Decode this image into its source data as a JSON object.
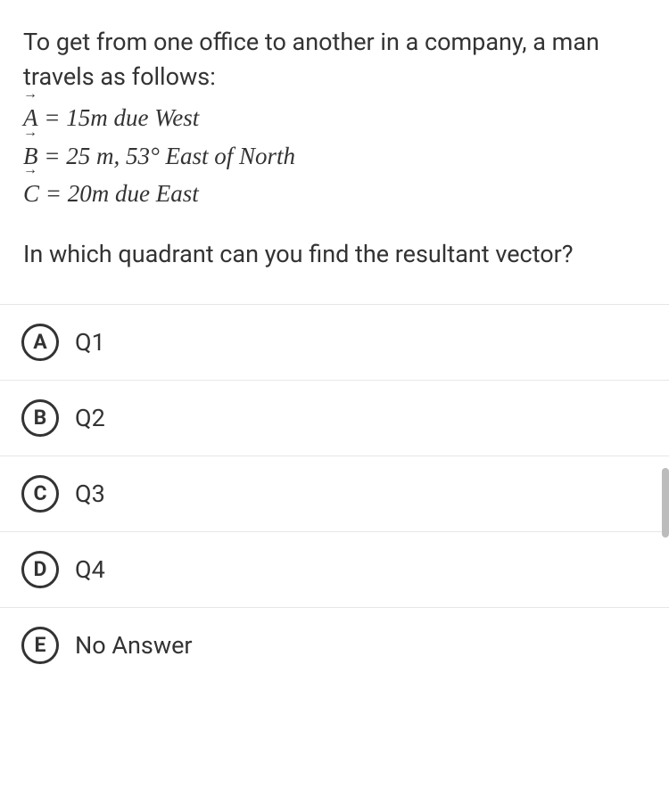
{
  "prompt": "To get from one office to another in a company, a man travels as follows:",
  "vectors": {
    "A": {
      "symbol": "A",
      "rhs": " = 15m due West"
    },
    "B": {
      "symbol": "B",
      "rhs": "  = 25 m, 53° East of North"
    },
    "C": {
      "symbol": "C",
      "rhs": " = 20m due East"
    }
  },
  "question2": "In which quadrant can you find the resultant vector?",
  "choices": [
    {
      "letter": "A",
      "text": "Q1"
    },
    {
      "letter": "B",
      "text": "Q2"
    },
    {
      "letter": "C",
      "text": "Q3"
    },
    {
      "letter": "D",
      "text": "Q4"
    },
    {
      "letter": "E",
      "text": "No Answer"
    }
  ],
  "styles": {
    "background": "#ffffff",
    "text_color": "#333333",
    "divider_color": "#e6e6e6",
    "circle_border": "#333333",
    "scrollbar_color": "#bcbcbc",
    "base_fontsize": 27,
    "choice_fontsize": 27,
    "circle_diameter": 42,
    "circle_border_width": 3
  }
}
